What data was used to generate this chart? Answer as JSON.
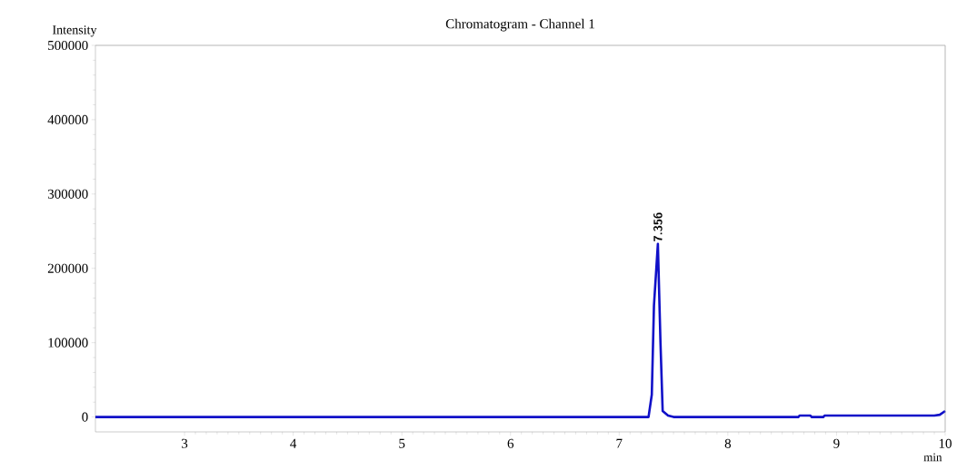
{
  "chart_data": {
    "type": "line",
    "title": "Chromatogram - Channel 1",
    "xlabel": "min",
    "ylabel": "Intensity",
    "x": [
      2.18,
      7.27,
      7.3,
      7.32,
      7.356,
      7.38,
      7.4,
      7.45,
      7.5,
      8.65,
      8.66,
      8.76,
      8.77,
      8.88,
      8.89,
      9.04,
      9.06,
      9.9,
      9.95,
      10.0
    ],
    "series": [
      {
        "color": "#1010c8",
        "values": [
          0,
          0,
          30000,
          150000,
          233000,
          100000,
          8000,
          2000,
          0,
          0,
          2000,
          2000,
          0,
          0,
          2000,
          2000,
          2000,
          2000,
          3000,
          8000
        ]
      }
    ],
    "xlim": [
      2.18,
      10
    ],
    "xticks": [
      3,
      4,
      5,
      6,
      7,
      8,
      9,
      10
    ],
    "ylim": [
      -20000,
      500000
    ],
    "yticks": [
      0,
      100000,
      200000,
      300000,
      400000,
      500000
    ],
    "annotations": [
      {
        "text": "7.356",
        "x": 7.356,
        "y": 233000
      }
    ],
    "grid": false,
    "marker": "none",
    "line_style": "solid"
  }
}
